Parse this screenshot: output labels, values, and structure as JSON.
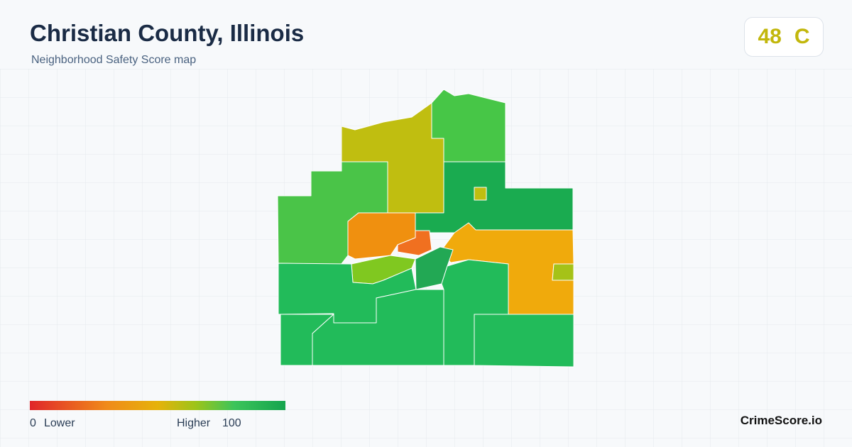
{
  "header": {
    "title": "Christian County, Illinois",
    "subtitle": "Neighborhood Safety Score map"
  },
  "score": {
    "value": "48",
    "grade": "C"
  },
  "legend": {
    "min": "0",
    "low": "Lower",
    "high": "Higher",
    "max": "100"
  },
  "footer": {
    "brand": "CrimeScore.io"
  }
}
